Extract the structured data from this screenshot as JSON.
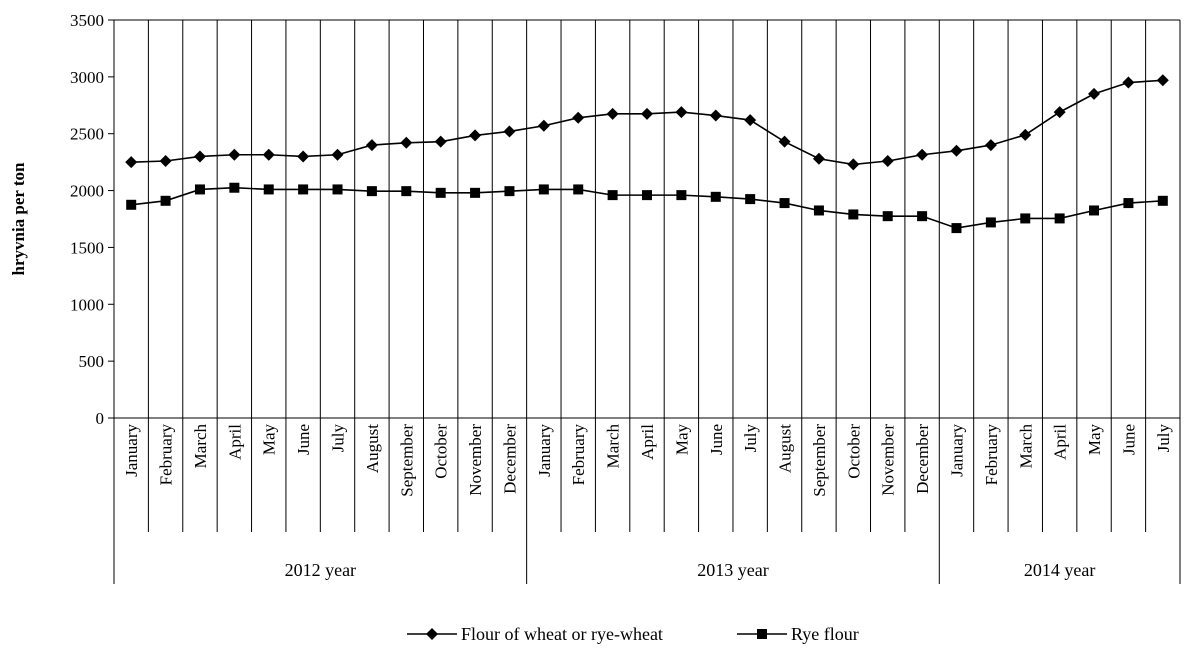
{
  "chart_data": {
    "type": "line",
    "title": "",
    "xlabel": "",
    "ylabel": "hryvnia per ton",
    "ylim": [
      0,
      3500
    ],
    "yticks": [
      0,
      500,
      1000,
      1500,
      2000,
      2500,
      3000,
      3500
    ],
    "grid": "vertical",
    "legend_position": "bottom",
    "categories": [
      "January",
      "February",
      "March",
      "April",
      "May",
      "June",
      "July",
      "August",
      "September",
      "October",
      "November",
      "December",
      "January",
      "February",
      "March",
      "April",
      "May",
      "June",
      "July",
      "August",
      "September",
      "October",
      "November",
      "December",
      "January",
      "February",
      "March",
      "April",
      "May",
      "June",
      "July"
    ],
    "groups": [
      {
        "label": "2012 year",
        "count": 12
      },
      {
        "label": "2013 year",
        "count": 12
      },
      {
        "label": "2014 year",
        "count": 7
      }
    ],
    "series": [
      {
        "name": "Flour of wheat or rye-wheat",
        "marker": "diamond",
        "color": "#000000",
        "values": [
          2250,
          2260,
          2300,
          2315,
          2315,
          2300,
          2315,
          2400,
          2420,
          2430,
          2485,
          2520,
          2570,
          2640,
          2675,
          2675,
          2690,
          2660,
          2620,
          2430,
          2280,
          2230,
          2260,
          2315,
          2350,
          2400,
          2490,
          2690,
          2850,
          2950,
          2970
        ]
      },
      {
        "name": "Rye flour",
        "marker": "square",
        "color": "#000000",
        "values": [
          1875,
          1910,
          2010,
          2025,
          2010,
          2010,
          2010,
          1995,
          1995,
          1980,
          1980,
          1995,
          2010,
          2010,
          1960,
          1960,
          1960,
          1945,
          1925,
          1890,
          1825,
          1790,
          1775,
          1775,
          1670,
          1720,
          1755,
          1755,
          1825,
          1890,
          1910
        ]
      }
    ]
  }
}
